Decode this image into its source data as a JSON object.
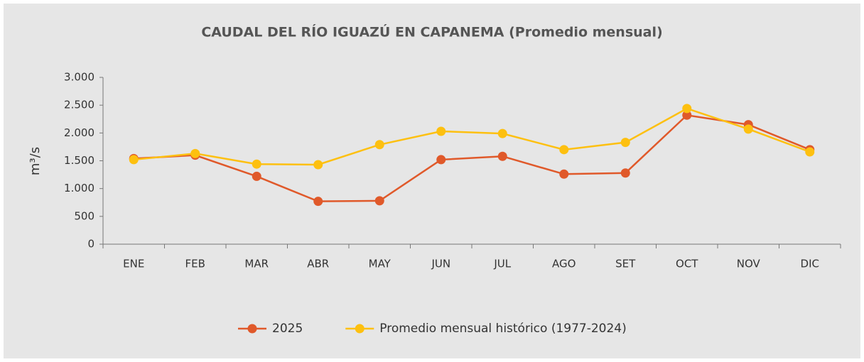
{
  "chart_data": {
    "type": "line",
    "title": "CAUDAL DEL RÍO IGUAZÚ EN CAPANEMA (Promedio mensual)",
    "ylabel": "m³/s",
    "categories": [
      "ENE",
      "FEB",
      "MAR",
      "ABR",
      "MAY",
      "JUN",
      "JUL",
      "AGO",
      "SET",
      "OCT",
      "NOV",
      "DIC"
    ],
    "series": [
      {
        "name": "2025",
        "color": "#e0592a",
        "values": [
          1540,
          1600,
          1220,
          770,
          780,
          1520,
          1580,
          1260,
          1280,
          2320,
          2150,
          1700
        ]
      },
      {
        "name": "Promedio mensual histórico (1977-2024)",
        "color": "#fdc010",
        "values": [
          1520,
          1630,
          1440,
          1430,
          1790,
          2030,
          1990,
          1700,
          1830,
          2440,
          2070,
          1660
        ]
      }
    ],
    "ylim": [
      0,
      3000
    ],
    "yticks": [
      0,
      500,
      {
        "value": 1000,
        "label": "1.000"
      },
      {
        "value": 1500,
        "label": "1.500"
      },
      {
        "value": 2000,
        "label": "2.000"
      },
      {
        "value": 2500,
        "label": "2.500"
      },
      {
        "value": 3000,
        "label": "3.000"
      }
    ],
    "legend": "bottom"
  }
}
